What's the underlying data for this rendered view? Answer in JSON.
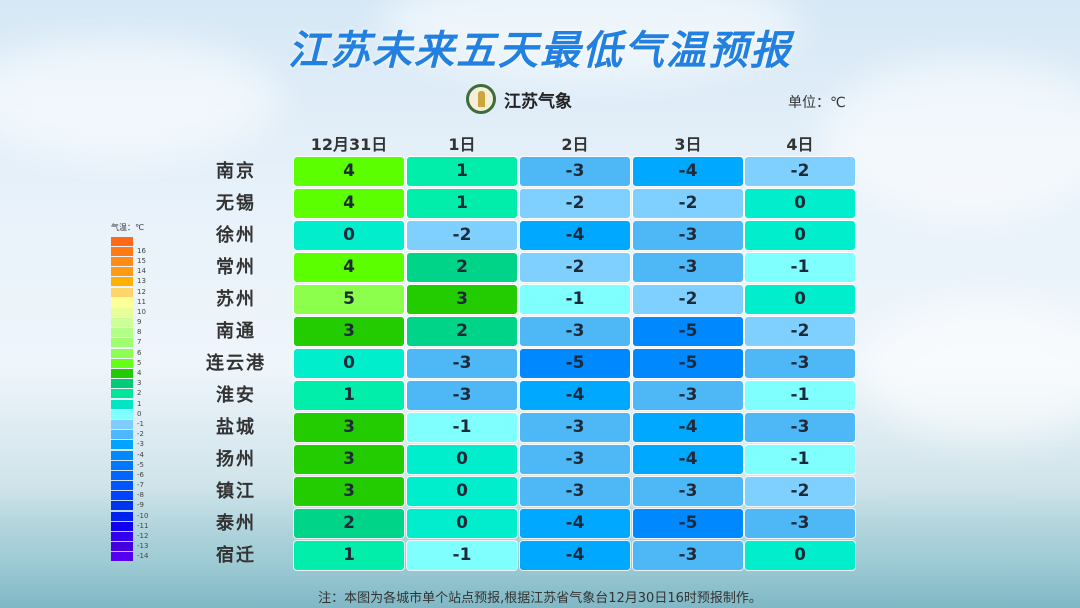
{
  "header": {
    "title": "江苏未来五天最低气温预报",
    "logo_text": "江苏气象",
    "unit": "单位：℃"
  },
  "legend": {
    "title": "气温：℃",
    "items": [
      {
        "label": "",
        "color": "#ff6a1a"
      },
      {
        "label": "16",
        "color": "#ff7a12"
      },
      {
        "label": "15",
        "color": "#ff8a16"
      },
      {
        "label": "14",
        "color": "#ff9a12"
      },
      {
        "label": "13",
        "color": "#ffb000"
      },
      {
        "label": "12",
        "color": "#ffd46a"
      },
      {
        "label": "11",
        "color": "#ffff9a"
      },
      {
        "label": "10",
        "color": "#e6ff9a"
      },
      {
        "label": "9",
        "color": "#ccff99"
      },
      {
        "label": "8",
        "color": "#b3ff88"
      },
      {
        "label": "7",
        "color": "#a0ff70"
      },
      {
        "label": "6",
        "color": "#8cff55"
      },
      {
        "label": "5",
        "color": "#66ff1a"
      },
      {
        "label": "4",
        "color": "#22cc00"
      },
      {
        "label": "3",
        "color": "#00cc77"
      },
      {
        "label": "2",
        "color": "#00e59a"
      },
      {
        "label": "1",
        "color": "#00e6c3"
      },
      {
        "label": "0",
        "color": "#80ffff"
      },
      {
        "label": "-1",
        "color": "#80ccff"
      },
      {
        "label": "-2",
        "color": "#4db8ff"
      },
      {
        "label": "-3",
        "color": "#00a3ff"
      },
      {
        "label": "-4",
        "color": "#0088ff"
      },
      {
        "label": "-5",
        "color": "#0077ff"
      },
      {
        "label": "-6",
        "color": "#0066ff"
      },
      {
        "label": "-7",
        "color": "#0055ff"
      },
      {
        "label": "-8",
        "color": "#0044ff"
      },
      {
        "label": "-9",
        "color": "#0033ee"
      },
      {
        "label": "-10",
        "color": "#0022ee"
      },
      {
        "label": "-11",
        "color": "#1100ee"
      },
      {
        "label": "-12",
        "color": "#3300ee"
      },
      {
        "label": "-13",
        "color": "#4400dd"
      },
      {
        "label": "-14",
        "color": "#5500ee"
      }
    ]
  },
  "note": "注：本图为各城市单个站点预报,根据江苏省气象台12月30日16时预报制作。",
  "chart_data": {
    "type": "heatmap",
    "title": "江苏未来五天最低气温预报",
    "unit": "℃",
    "columns": [
      "12月31日",
      "1日",
      "2日",
      "3日",
      "4日"
    ],
    "rows": [
      "南京",
      "无锡",
      "徐州",
      "常州",
      "苏州",
      "南通",
      "连云港",
      "淮安",
      "盐城",
      "扬州",
      "镇江",
      "泰州",
      "宿迁"
    ],
    "values": [
      [
        4,
        1,
        -3,
        -4,
        -2
      ],
      [
        4,
        1,
        -2,
        -2,
        0
      ],
      [
        0,
        -2,
        -4,
        -3,
        0
      ],
      [
        4,
        2,
        -2,
        -3,
        -1
      ],
      [
        5,
        3,
        -1,
        -2,
        0
      ],
      [
        3,
        2,
        -3,
        -5,
        -2
      ],
      [
        0,
        -3,
        -5,
        -5,
        -3
      ],
      [
        1,
        -3,
        -4,
        -3,
        -1
      ],
      [
        3,
        -1,
        -3,
        -4,
        -3
      ],
      [
        3,
        0,
        -3,
        -4,
        -1
      ],
      [
        3,
        0,
        -3,
        -3,
        -2
      ],
      [
        2,
        0,
        -4,
        -5,
        -3
      ],
      [
        1,
        -1,
        -4,
        -3,
        0
      ]
    ],
    "color_scale": {
      "5": "#8cff4d",
      "4": "#5cff00",
      "3": "#22cc00",
      "2": "#00d488",
      "1": "#00eeaa",
      "0": "#00eecc",
      "-1": "#80ffff",
      "-2": "#80d0ff",
      "-3": "#4db8f5",
      "-4": "#00a8ff",
      "-5": "#0088ff"
    },
    "note": "注：本图为各城市单个站点预报,根据江苏省气象台12月30日16时预报制作。"
  }
}
